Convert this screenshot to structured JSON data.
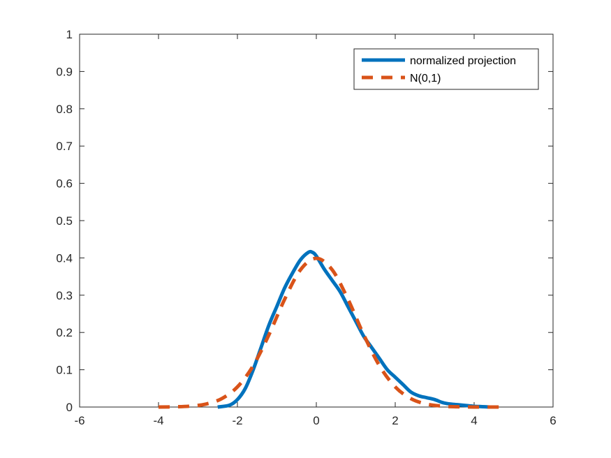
{
  "chart_data": {
    "type": "line",
    "title": "",
    "xlabel": "",
    "ylabel": "",
    "xlim": [
      -6,
      6
    ],
    "ylim": [
      0,
      1
    ],
    "grid": false,
    "legend_position": "top-right",
    "x_ticks": [
      -6,
      -4,
      -2,
      0,
      2,
      4,
      6
    ],
    "x_tick_labels": [
      "-6",
      "-4",
      "-2",
      "0",
      "2",
      "4",
      "6"
    ],
    "y_ticks": [
      0,
      0.1,
      0.2,
      0.3,
      0.4,
      0.5,
      0.6,
      0.7,
      0.8,
      0.9,
      1
    ],
    "y_tick_labels": [
      "0",
      "0.1",
      "0.2",
      "0.3",
      "0.4",
      "0.5",
      "0.6",
      "0.7",
      "0.8",
      "0.9",
      "1"
    ],
    "series": [
      {
        "name": "normalized projection",
        "color": "#0072BD",
        "style": "solid",
        "x": [
          -2.5,
          -2.2,
          -2.0,
          -1.8,
          -1.6,
          -1.4,
          -1.2,
          -1.0,
          -0.8,
          -0.6,
          -0.4,
          -0.2,
          -0.1,
          0.0,
          0.2,
          0.4,
          0.6,
          0.8,
          1.0,
          1.2,
          1.4,
          1.6,
          1.8,
          2.0,
          2.2,
          2.4,
          2.6,
          2.8,
          3.0,
          3.2,
          3.4,
          3.6,
          3.8,
          4.0,
          4.2,
          4.4
        ],
        "y": [
          0.0,
          0.005,
          0.02,
          0.05,
          0.1,
          0.16,
          0.22,
          0.27,
          0.32,
          0.36,
          0.395,
          0.415,
          0.415,
          0.405,
          0.37,
          0.34,
          0.31,
          0.27,
          0.23,
          0.19,
          0.16,
          0.13,
          0.1,
          0.08,
          0.06,
          0.04,
          0.03,
          0.025,
          0.02,
          0.012,
          0.008,
          0.006,
          0.004,
          0.002,
          0.001,
          0.0
        ]
      },
      {
        "name": "N(0,1)",
        "color": "#D95319",
        "style": "dashed",
        "x": [
          -4.0,
          -3.6,
          -3.2,
          -2.8,
          -2.4,
          -2.0,
          -1.6,
          -1.2,
          -0.8,
          -0.4,
          0.0,
          0.4,
          0.8,
          1.2,
          1.6,
          2.0,
          2.4,
          2.8,
          3.2,
          3.6,
          4.0,
          4.4,
          4.7
        ],
        "y": [
          0.0001,
          0.0006,
          0.0024,
          0.0079,
          0.0224,
          0.054,
          0.1109,
          0.1942,
          0.2897,
          0.3683,
          0.3989,
          0.3683,
          0.2897,
          0.1942,
          0.1109,
          0.054,
          0.0224,
          0.0079,
          0.0024,
          0.0006,
          0.0001,
          0.0,
          0.0
        ]
      }
    ]
  },
  "legend": {
    "items": [
      {
        "label": "normalized projection"
      },
      {
        "label": "N(0,1)"
      }
    ]
  }
}
